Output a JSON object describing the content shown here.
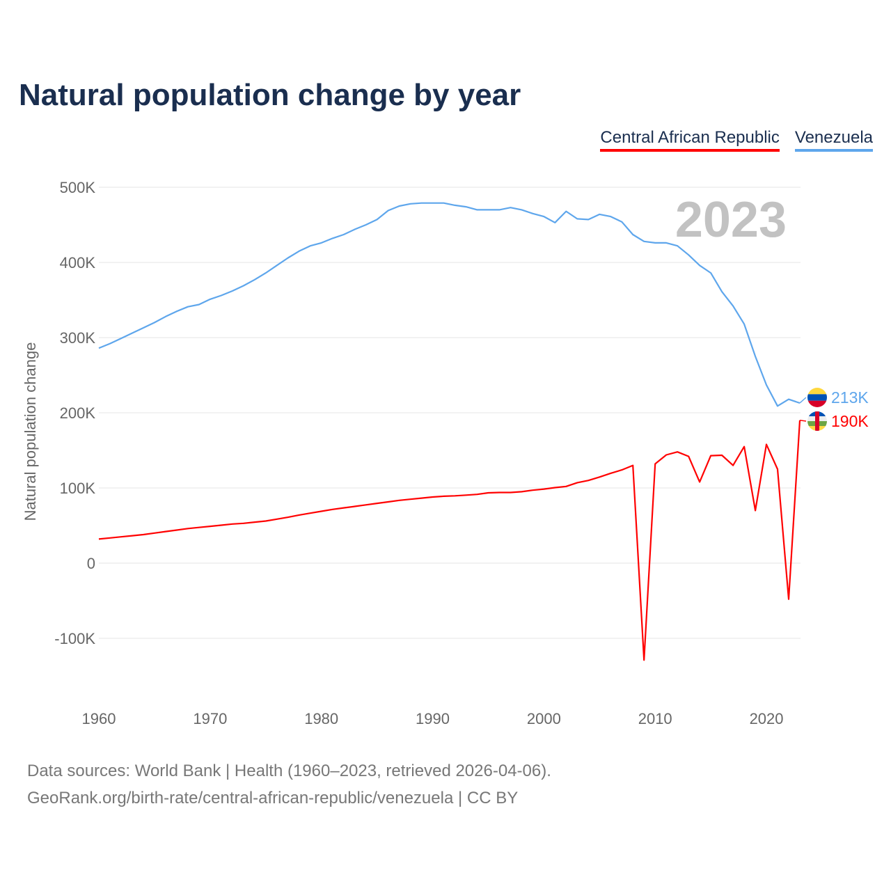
{
  "title": "Natural population change by year",
  "footer": {
    "line1": "Data sources: World Bank | Health (1960–2023, retrieved 2026-04-06).",
    "line2": "GeoRank.org/birth-rate/central-african-republic/venezuela | CC BY"
  },
  "chart_data": {
    "type": "line",
    "title": "Natural population change by year",
    "xlabel": "",
    "ylabel": "Natural population change",
    "year_label": "2023",
    "xlim": [
      1960,
      2023
    ],
    "ylim": [
      -150000,
      500000
    ],
    "x_ticks": [
      1960,
      1970,
      1980,
      1990,
      2000,
      2010,
      2020
    ],
    "y_ticks": [
      {
        "v": -100000,
        "label": "-100K"
      },
      {
        "v": 0,
        "label": "0"
      },
      {
        "v": 100000,
        "label": "100K"
      },
      {
        "v": 200000,
        "label": "200K"
      },
      {
        "v": 300000,
        "label": "300K"
      },
      {
        "v": 400000,
        "label": "400K"
      },
      {
        "v": 500000,
        "label": "500K"
      }
    ],
    "grid": true,
    "legend_position": "top-right",
    "x": [
      1960,
      1961,
      1962,
      1963,
      1964,
      1965,
      1966,
      1967,
      1968,
      1969,
      1970,
      1971,
      1972,
      1973,
      1974,
      1975,
      1976,
      1977,
      1978,
      1979,
      1980,
      1981,
      1982,
      1983,
      1984,
      1985,
      1986,
      1987,
      1988,
      1989,
      1990,
      1991,
      1992,
      1993,
      1994,
      1995,
      1996,
      1997,
      1998,
      1999,
      2000,
      2001,
      2002,
      2003,
      2004,
      2005,
      2006,
      2007,
      2008,
      2009,
      2010,
      2011,
      2012,
      2013,
      2014,
      2015,
      2016,
      2017,
      2018,
      2019,
      2020,
      2021,
      2022,
      2023
    ],
    "series": [
      {
        "name": "Central African Republic",
        "color": "#ff0000",
        "end_label": "190K",
        "values": [
          32000,
          33500,
          35000,
          36500,
          38000,
          40000,
          42000,
          44000,
          46000,
          47500,
          49000,
          50500,
          52000,
          53000,
          54500,
          56000,
          58500,
          61000,
          64000,
          66500,
          69000,
          71500,
          73500,
          75500,
          77500,
          79500,
          81500,
          83500,
          85000,
          86500,
          88000,
          89000,
          89500,
          90500,
          91500,
          93500,
          94000,
          94000,
          95000,
          97000,
          98500,
          100500,
          102000,
          107000,
          110000,
          114500,
          119500,
          124000,
          130000,
          -129000,
          132000,
          144000,
          148000,
          142000,
          108000,
          143000,
          143500,
          130000,
          155000,
          70000,
          158000,
          125000,
          -48000,
          190000
        ]
      },
      {
        "name": "Venezuela",
        "color": "#5ea6ec",
        "end_label": "213K",
        "values": [
          286000,
          292000,
          299000,
          306000,
          313000,
          320000,
          328000,
          335000,
          341000,
          344000,
          351000,
          356000,
          362000,
          369000,
          377000,
          386000,
          396000,
          406000,
          415000,
          422000,
          426000,
          432000,
          437000,
          444000,
          450000,
          457000,
          469000,
          475000,
          478000,
          479000,
          479000,
          479000,
          476000,
          474000,
          470000,
          470000,
          470000,
          473000,
          470000,
          465000,
          461000,
          453000,
          468000,
          458000,
          457000,
          464000,
          461000,
          454000,
          437000,
          428000,
          426000,
          426000,
          422000,
          410000,
          396000,
          386000,
          361000,
          342000,
          318000,
          275000,
          237000,
          209000,
          218000,
          213000
        ]
      }
    ]
  }
}
